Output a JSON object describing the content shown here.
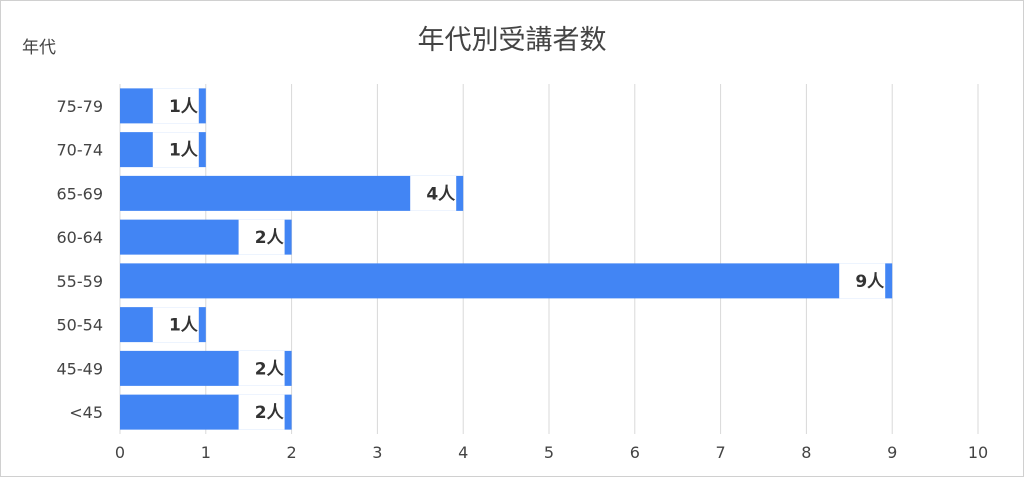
{
  "chart_data": {
    "type": "bar",
    "orientation": "horizontal",
    "title": "年代別受講者数",
    "ylabel": "年代",
    "xlabel": "",
    "categories": [
      "75-79",
      "70-74",
      "65-69",
      "60-64",
      "55-59",
      "50-54",
      "45-49",
      "<45"
    ],
    "values": [
      1,
      1,
      4,
      2,
      9,
      1,
      2,
      2
    ],
    "data_labels": [
      "1人",
      "1人",
      "4人",
      "2人",
      "9人",
      "1人",
      "2人",
      "2人"
    ],
    "xlim": [
      0,
      10
    ],
    "xticks": [
      "0",
      "1",
      "2",
      "3",
      "4",
      "5",
      "6",
      "7",
      "8",
      "9",
      "10"
    ],
    "grid": "vertical",
    "legend": "none",
    "colors": {
      "bar": "#4285f4",
      "grid": "#d9d9d9",
      "text": "#444444",
      "label": "#333333"
    }
  }
}
